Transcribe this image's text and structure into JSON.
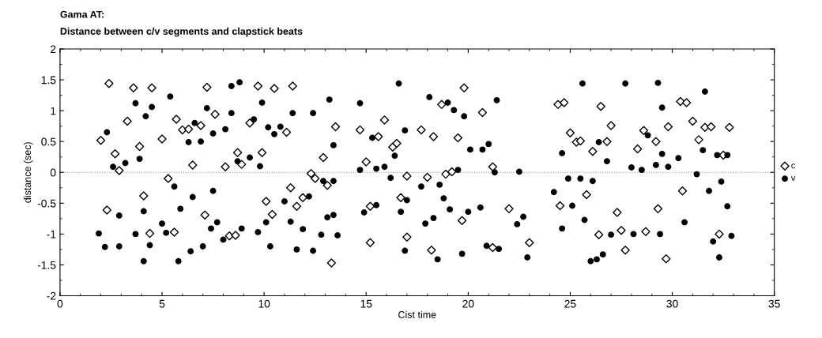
{
  "chart_data": {
    "type": "scatter",
    "title": "Gama AT:",
    "subtitle": "Distance between c/v segments and clapstick beats",
    "xlabel": "Cist time",
    "ylabel": "distance (sec)",
    "xlim": [
      0,
      35
    ],
    "xticks": [
      0,
      5,
      10,
      15,
      20,
      25,
      30,
      35
    ],
    "ylim": [
      -2,
      2
    ],
    "yticks": [
      2,
      1.5,
      1,
      0.5,
      0,
      -0.5,
      -1,
      -1.5,
      -2
    ],
    "grid": false,
    "legend": "right",
    "ref_lines": [
      {
        "axis": "y",
        "value": 0,
        "label": null,
        "color": "#888888",
        "line_style": "dotted"
      }
    ],
    "series": [
      {
        "name": "c",
        "color": "#000000",
        "marker": "diamond",
        "x": [
          2.0,
          2.4,
          2.7,
          3.3,
          3.6,
          3.9,
          4.5,
          5.0,
          5.7,
          6.0,
          6.3,
          6.9,
          7.2,
          7.6,
          6.5,
          8.1,
          8.7,
          8.9,
          9.3,
          9.7,
          9.9,
          10.5,
          11.1,
          11.4,
          12.9,
          13.5,
          14.7,
          15.0,
          15.9,
          16.3,
          16.5,
          15.6,
          2.3,
          2.9,
          4.1,
          4.4,
          5.3,
          5.6,
          7.1,
          8.3,
          8.6,
          10.1,
          10.4,
          11.3,
          11.6,
          11.9,
          12.3,
          12.5,
          13.1,
          13.3,
          15.2,
          15.2,
          16.7,
          17.0,
          17.0,
          19.8,
          18.7,
          17.7,
          18.3,
          19.5,
          20.7,
          18.0,
          18.9,
          19.2,
          21.2,
          24.4,
          24.7,
          26.5,
          27.0,
          25.0,
          25.3,
          25.5,
          26.1,
          26.8,
          28.3,
          28.6,
          29.2,
          29.8,
          30.4,
          30.7,
          31.0,
          31.6,
          31.9,
          32.8,
          31.3,
          32.5,
          19.7,
          18.2,
          21.2,
          22.0,
          23.0,
          24.5,
          25.8,
          26.4,
          27.3,
          27.5,
          27.7,
          28.7,
          29.3,
          29.7,
          30.5,
          32.3
        ],
        "values": [
          0.52,
          1.44,
          0.3,
          0.83,
          1.37,
          0.42,
          1.37,
          0.54,
          0.86,
          0.69,
          0.7,
          0.76,
          1.38,
          0.94,
          0.12,
          0.09,
          0.32,
          0.13,
          0.8,
          1.4,
          0.32,
          1.36,
          0.65,
          1.4,
          0.24,
          0.74,
          0.69,
          0.17,
          0.85,
          0.41,
          0.47,
          0.58,
          -0.61,
          0.03,
          -0.38,
          -0.99,
          -0.1,
          -0.97,
          -0.69,
          -1.03,
          -1.02,
          -0.47,
          -0.68,
          -0.25,
          -0.55,
          -0.41,
          -0.02,
          -0.1,
          -0.21,
          -1.47,
          -1.14,
          -0.55,
          -0.41,
          -0.06,
          -1.05,
          1.37,
          1.1,
          0.69,
          0.58,
          0.56,
          0.97,
          -0.08,
          -0.03,
          0.01,
          0.09,
          1.1,
          1.13,
          1.07,
          0.76,
          0.64,
          0.49,
          0.51,
          0.34,
          0.5,
          0.38,
          0.68,
          0.5,
          0.74,
          1.15,
          1.13,
          0.83,
          0.73,
          0.74,
          0.73,
          0.53,
          0.28,
          -0.78,
          -1.26,
          -1.22,
          -0.59,
          -1.14,
          -0.54,
          -0.36,
          -1.01,
          -0.65,
          -0.94,
          -1.26,
          -0.96,
          -0.59,
          -1.4,
          -0.3,
          -1.0
        ]
      },
      {
        "name": "v",
        "color": "#000000",
        "marker": "circle",
        "x": [
          2.3,
          2.6,
          3.2,
          3.7,
          3.9,
          4.2,
          4.5,
          5.4,
          6.3,
          6.6,
          6.9,
          7.2,
          7.5,
          8.1,
          8.4,
          8.4,
          8.8,
          8.7,
          9.3,
          9.5,
          9.9,
          9.8,
          10.2,
          10.5,
          10.8,
          11.4,
          12.4,
          13.2,
          13.4,
          14.7,
          15.3,
          15.9,
          16.4,
          16.6,
          16.9,
          1.9,
          2.2,
          2.9,
          2.9,
          3.7,
          4.1,
          4.1,
          4.4,
          5.0,
          5.2,
          5.6,
          5.9,
          5.8,
          6.5,
          6.4,
          7.0,
          7.4,
          7.5,
          7.7,
          8.0,
          8.9,
          9.7,
          10.1,
          10.3,
          11.0,
          11.3,
          11.6,
          11.9,
          12.2,
          12.4,
          12.8,
          12.9,
          13.1,
          13.4,
          13.4,
          13.6,
          14.7,
          14.9,
          15.5,
          15.5,
          16.2,
          16.7,
          16.9,
          17.0,
          18.1,
          19.0,
          19.3,
          19.8,
          21.4,
          17.7,
          18.6,
          19.5,
          20.1,
          20.7,
          21.0,
          21.3,
          22.5,
          25.6,
          27.7,
          29.3,
          31.6,
          29.5,
          28.8,
          26.4,
          24.6,
          26.8,
          29.5,
          30.3,
          31.5,
          32.2,
          32.7,
          28.0,
          28.5,
          29.2,
          29.8,
          31.2,
          24.9,
          25.5,
          26.1,
          32.4,
          18.8,
          19.1,
          17.9,
          18.3,
          20.0,
          20.6,
          18.5,
          19.7,
          20.9,
          21.5,
          22.4,
          22.7,
          22.9,
          24.2,
          25.1,
          25.7,
          24.6,
          26.0,
          26.3,
          26.6,
          27.0,
          28.1,
          29.4,
          30.6,
          31.8,
          32.7,
          32.0,
          32.9,
          32.3
        ],
        "values": [
          0.65,
          0.09,
          0.15,
          1.12,
          0.22,
          0.91,
          1.06,
          1.23,
          0.49,
          0.8,
          0.5,
          1.04,
          0.63,
          0.7,
          0.96,
          1.4,
          1.46,
          0.18,
          0.24,
          0.86,
          1.13,
          0.1,
          0.73,
          0.62,
          0.74,
          0.96,
          0.96,
          1.18,
          0.44,
          1.12,
          0.56,
          0.09,
          0.27,
          1.44,
          0.68,
          -0.99,
          -1.21,
          -0.7,
          -1.2,
          -1.0,
          -0.63,
          -1.44,
          -1.18,
          -0.83,
          -0.98,
          -0.23,
          -0.59,
          -1.44,
          -0.4,
          -1.28,
          -1.2,
          -0.91,
          -0.3,
          -0.81,
          -1.09,
          -0.91,
          -0.97,
          -0.81,
          -1.2,
          -0.47,
          -0.8,
          -1.25,
          -0.92,
          -0.39,
          -1.27,
          -1.01,
          -0.14,
          -0.73,
          -0.14,
          -0.69,
          -1.02,
          0.04,
          -0.65,
          0.06,
          -0.53,
          -0.09,
          -0.64,
          -1.27,
          -0.45,
          1.22,
          1.13,
          1.01,
          0.91,
          1.17,
          -0.23,
          -0.2,
          0.04,
          0.37,
          0.37,
          0.46,
          0.0,
          0.01,
          1.44,
          1.44,
          1.45,
          1.31,
          1.05,
          0.6,
          0.49,
          0.31,
          0.18,
          0.3,
          0.23,
          0.36,
          0.28,
          0.28,
          0.08,
          0.04,
          0.12,
          0.09,
          -0.03,
          -0.1,
          -0.1,
          -0.14,
          -0.15,
          -0.42,
          -0.6,
          -0.83,
          -0.74,
          -0.64,
          -0.57,
          -1.41,
          -1.32,
          -1.19,
          -1.24,
          -0.84,
          -0.72,
          -1.38,
          -0.32,
          -0.54,
          -0.77,
          -0.91,
          -1.44,
          -1.41,
          -1.33,
          -1.01,
          -1.0,
          -1.0,
          -0.81,
          -0.3,
          -0.55,
          -1.12,
          -1.03,
          -1.38
        ]
      }
    ]
  }
}
